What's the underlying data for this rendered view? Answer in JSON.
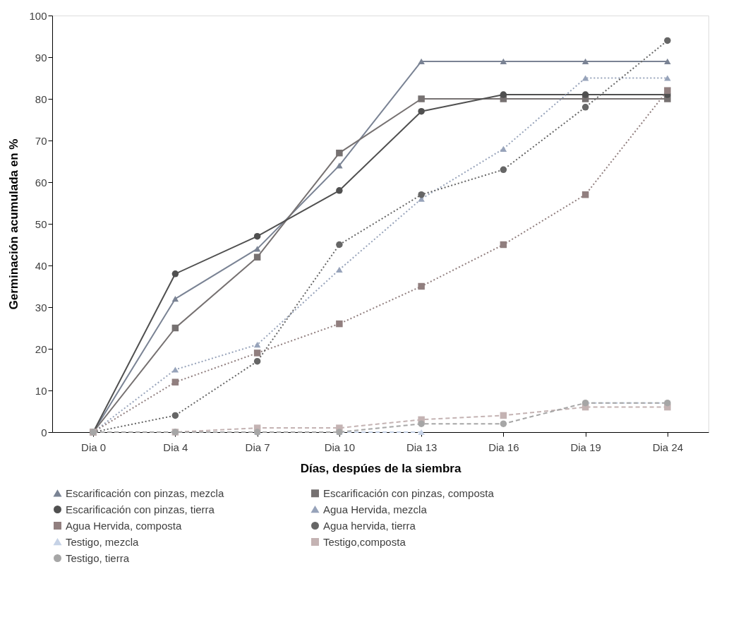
{
  "chart_data": {
    "type": "line",
    "xlabel": "Días, despúes de la siembra",
    "ylabel": "Germinación acumulada en %",
    "categories": [
      "Dia 0",
      "Dia 4",
      "Dia 7",
      "Dia 10",
      "Dia 13",
      "Dia 16",
      "Dia 19",
      "Dia 24"
    ],
    "ylim": [
      0,
      100
    ],
    "yticks": [
      0,
      10,
      20,
      30,
      40,
      50,
      60,
      70,
      80,
      90,
      100
    ],
    "grid": false,
    "legend": "bottom",
    "series": [
      {
        "name": "Escarificación con pinzas, mezcla",
        "color": "#7a8394",
        "marker": "triangle",
        "line_style": "solid",
        "values": [
          0,
          32,
          44,
          64,
          89,
          89,
          89,
          89
        ]
      },
      {
        "name": "Escarificación con pinzas, composta",
        "color": "#767171",
        "marker": "square",
        "line_style": "solid",
        "values": [
          0,
          25,
          42,
          67,
          80,
          80,
          80,
          80
        ]
      },
      {
        "name": "Escarificación con pinzas, tierra",
        "color": "#505050",
        "marker": "circle",
        "line_style": "solid",
        "values": [
          0,
          38,
          47,
          58,
          77,
          81,
          81,
          81
        ]
      },
      {
        "name": "Agua Hervida, mezcla",
        "color": "#97a3ba",
        "marker": "triangle",
        "line_style": "dotted",
        "values": [
          0,
          15,
          21,
          39,
          56,
          68,
          85,
          85
        ]
      },
      {
        "name": "Agua Hervida, composta",
        "color": "#917f7f",
        "marker": "square",
        "line_style": "dotted",
        "values": [
          0,
          12,
          19,
          26,
          35,
          45,
          57,
          82
        ]
      },
      {
        "name": "Agua hervida, tierra",
        "color": "#666666",
        "marker": "circle",
        "line_style": "dotted",
        "values": [
          0,
          4,
          17,
          45,
          57,
          63,
          78,
          94
        ]
      },
      {
        "name": "Testigo, mezcla",
        "color": "#c6d2e6",
        "marker": "triangle",
        "line_style": "dashed",
        "values": [
          0,
          0,
          0,
          0,
          0,
          null,
          7,
          7
        ]
      },
      {
        "name": "Testigo,composta",
        "color": "#c4b3b3",
        "marker": "square",
        "line_style": "dashed",
        "values": [
          0,
          0,
          1,
          1,
          3,
          4,
          6,
          6
        ]
      },
      {
        "name": "Testigo, tierra",
        "color": "#a6a6a6",
        "marker": "circle",
        "line_style": "dashed",
        "values": [
          0,
          0,
          0,
          0,
          2,
          2,
          7,
          7
        ]
      }
    ]
  }
}
